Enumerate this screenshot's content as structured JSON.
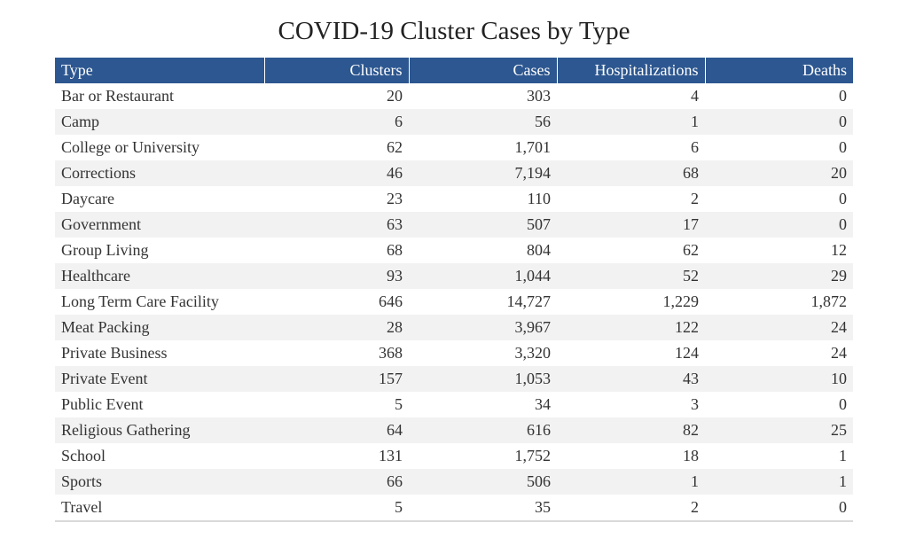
{
  "chart_data": {
    "type": "table",
    "title": "COVID-19 Cluster Cases by Type",
    "columns": [
      "Type",
      "Clusters",
      "Cases",
      "Hospitalizations",
      "Deaths"
    ],
    "rows": [
      [
        "Bar or Restaurant",
        "20",
        "303",
        "4",
        "0"
      ],
      [
        "Camp",
        "6",
        "56",
        "1",
        "0"
      ],
      [
        "College or University",
        "62",
        "1,701",
        "6",
        "0"
      ],
      [
        "Corrections",
        "46",
        "7,194",
        "68",
        "20"
      ],
      [
        "Daycare",
        "23",
        "110",
        "2",
        "0"
      ],
      [
        "Government",
        "63",
        "507",
        "17",
        "0"
      ],
      [
        "Group Living",
        "68",
        "804",
        "62",
        "12"
      ],
      [
        "Healthcare",
        "93",
        "1,044",
        "52",
        "29"
      ],
      [
        "Long Term Care Facility",
        "646",
        "14,727",
        "1,229",
        "1,872"
      ],
      [
        "Meat Packing",
        "28",
        "3,967",
        "122",
        "24"
      ],
      [
        "Private Business",
        "368",
        "3,320",
        "124",
        "24"
      ],
      [
        "Private Event",
        "157",
        "1,053",
        "43",
        "10"
      ],
      [
        "Public Event",
        "5",
        "34",
        "3",
        "0"
      ],
      [
        "Religious Gathering",
        "64",
        "616",
        "82",
        "25"
      ],
      [
        "School",
        "131",
        "1,752",
        "18",
        "1"
      ],
      [
        "Sports",
        "66",
        "506",
        "1",
        "1"
      ],
      [
        "Travel",
        "5",
        "35",
        "2",
        "0"
      ]
    ],
    "header_color": "#2d5790",
    "stripe_color": "#f2f2f2"
  }
}
